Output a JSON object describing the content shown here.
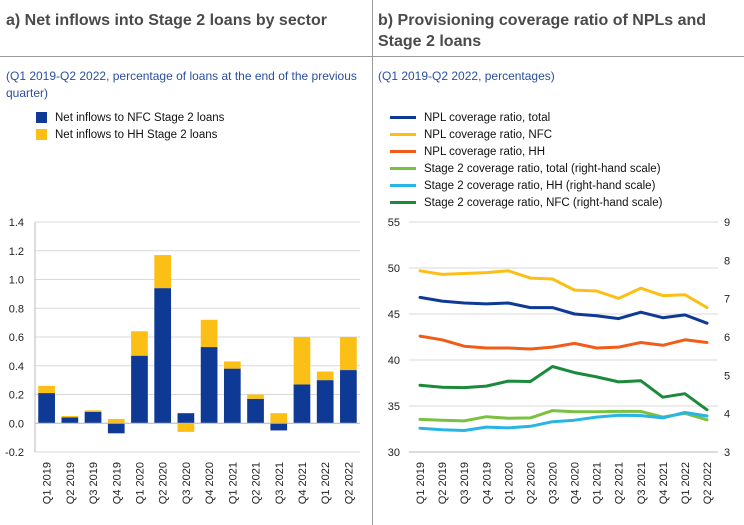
{
  "panel_a": {
    "title": "a) Net inflows into Stage 2 loans by sector",
    "subtitle": "(Q1 2019-Q2 2022, percentage of loans at the end of the previous quarter)"
  },
  "panel_b": {
    "title": "b) Provisioning coverage ratio of NPLs and Stage 2 loans",
    "subtitle": "(Q1 2019-Q2 2022, percentages)"
  },
  "colors": {
    "nfc_bar": "#0e3a95",
    "hh_bar": "#fbbf16",
    "npl_total": "#0e3a95",
    "npl_nfc": "#fbbf16",
    "npl_hh": "#f25c19",
    "s2_total": "#7ac142",
    "s2_hh": "#28b4e5",
    "s2_nfc": "#1b8a3a",
    "grid": "#d9d9d9"
  },
  "chart_data": [
    {
      "type": "bar",
      "stacked": true,
      "categories": [
        "Q1 2019",
        "Q2 2019",
        "Q3 2019",
        "Q4 2019",
        "Q1 2020",
        "Q2 2020",
        "Q3 2020",
        "Q4 2020",
        "Q1 2021",
        "Q2 2021",
        "Q3 2021",
        "Q4 2021",
        "Q1 2022",
        "Q2 2022"
      ],
      "series": [
        {
          "name": "Net inflows to NFC Stage 2 loans",
          "values": [
            0.21,
            0.04,
            0.08,
            -0.07,
            0.47,
            0.94,
            0.07,
            0.53,
            0.38,
            0.17,
            -0.05,
            0.27,
            0.3,
            0.37
          ]
        },
        {
          "name": "Net inflows to HH Stage 2 loans",
          "values": [
            0.05,
            0.01,
            0.01,
            0.03,
            0.17,
            0.23,
            -0.06,
            0.19,
            0.05,
            0.03,
            0.07,
            0.33,
            0.06,
            0.23
          ]
        }
      ],
      "ylim": [
        -0.2,
        1.4
      ],
      "yticks": [
        "-0.2",
        "0.0",
        "0.2",
        "0.4",
        "0.6",
        "0.8",
        "1.0",
        "1.2",
        "1.4"
      ],
      "grid": true,
      "legend_position": "top-left"
    },
    {
      "type": "line",
      "categories": [
        "Q1 2019",
        "Q2 2019",
        "Q3 2019",
        "Q4 2019",
        "Q1 2020",
        "Q2 2020",
        "Q3 2020",
        "Q4 2020",
        "Q1 2021",
        "Q2 2021",
        "Q3 2021",
        "Q4 2021",
        "Q1 2022",
        "Q2 2022"
      ],
      "series": [
        {
          "name": "NPL coverage ratio, total",
          "axis": "left",
          "values": [
            46.8,
            46.4,
            46.2,
            46.1,
            46.2,
            45.7,
            45.7,
            45.0,
            44.8,
            44.5,
            45.2,
            44.6,
            44.9,
            44.0
          ]
        },
        {
          "name": "NPL coverage ratio, NFC",
          "axis": "left",
          "values": [
            49.7,
            49.3,
            49.4,
            49.5,
            49.7,
            48.9,
            48.8,
            47.6,
            47.5,
            46.7,
            47.8,
            47.0,
            47.1,
            45.7
          ]
        },
        {
          "name": "NPL coverage ratio, HH",
          "axis": "left",
          "values": [
            42.6,
            42.2,
            41.5,
            41.3,
            41.3,
            41.2,
            41.4,
            41.8,
            41.3,
            41.4,
            41.9,
            41.6,
            42.2,
            41.9
          ]
        },
        {
          "name": "Stage 2 coverage ratio, total (right-hand scale)",
          "axis": "right",
          "values": [
            3.85,
            3.83,
            3.81,
            3.92,
            3.88,
            3.89,
            4.08,
            4.05,
            4.05,
            4.06,
            4.06,
            3.91,
            4.01,
            3.84
          ]
        },
        {
          "name": "Stage 2 coverage ratio, HH (right-hand scale)",
          "axis": "right",
          "values": [
            3.62,
            3.58,
            3.56,
            3.65,
            3.63,
            3.67,
            3.79,
            3.83,
            3.91,
            3.96,
            3.95,
            3.89,
            4.03,
            3.94
          ]
        },
        {
          "name": "Stage 2 coverage ratio, NFC (right-hand scale)",
          "axis": "right",
          "values": [
            4.74,
            4.69,
            4.68,
            4.72,
            4.85,
            4.84,
            5.23,
            5.07,
            4.96,
            4.83,
            4.86,
            4.43,
            4.52,
            4.1
          ]
        }
      ],
      "ylim": [
        30,
        55
      ],
      "yticks": [
        "30",
        "35",
        "40",
        "45",
        "50",
        "55"
      ],
      "y2lim": [
        3,
        9
      ],
      "y2ticks": [
        "3",
        "4",
        "5",
        "6",
        "7",
        "8",
        "9"
      ],
      "grid": true,
      "legend_position": "top-left"
    }
  ]
}
